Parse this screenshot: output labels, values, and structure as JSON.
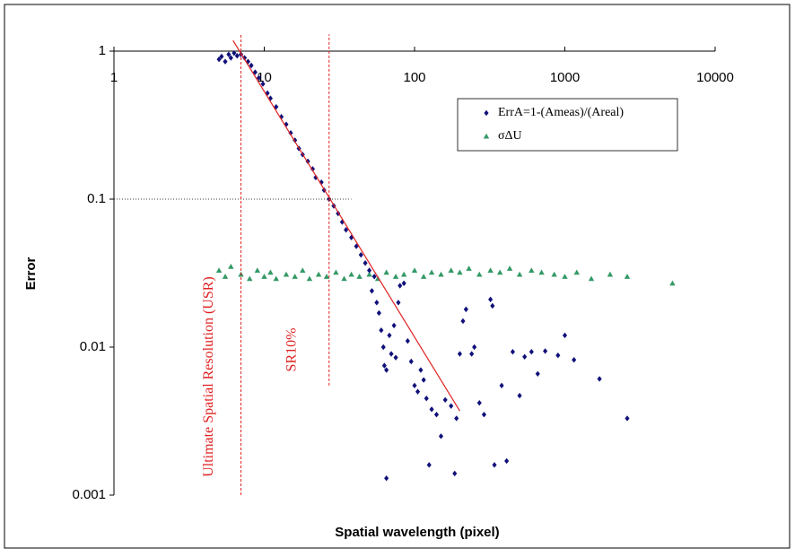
{
  "chart_data": {
    "type": "scatter",
    "x_label": "Spatial wavelength (pixel)",
    "y_label": "Error",
    "xlim": [
      1,
      10000
    ],
    "ylim": [
      0.001,
      1
    ],
    "xticks": [
      1,
      10,
      100,
      1000,
      10000
    ],
    "yticks": [
      0.001,
      0.01,
      0.1,
      1
    ],
    "xscale": "log",
    "yscale": "log",
    "x_axis_position": "top",
    "legend": "upper right",
    "series": [
      {
        "name": "ErrA=1-(Ameas)/(Areal)",
        "color": "#10107a",
        "marker": "diamond",
        "x": [
          5.0,
          5.2,
          5.5,
          5.8,
          6.0,
          6.3,
          6.6,
          7.0,
          7.4,
          7.8,
          8.2,
          8.7,
          9.2,
          9.8,
          10.5,
          11,
          12,
          13,
          14,
          15,
          16,
          17,
          18,
          19.5,
          21,
          22,
          24,
          25,
          27,
          29,
          31,
          33,
          35,
          38,
          41,
          44,
          47,
          50,
          54,
          52,
          56,
          58,
          60,
          62,
          63,
          65,
          68,
          70,
          73,
          75,
          78,
          80,
          85,
          65,
          90,
          95,
          100,
          105,
          110,
          115,
          120,
          125,
          130,
          140,
          150,
          160,
          175,
          185,
          190,
          200,
          210,
          220,
          240,
          250,
          270,
          290,
          320,
          330,
          340,
          380,
          410,
          450,
          500,
          540,
          600,
          660,
          740,
          900,
          1000,
          1150,
          1700,
          2600
        ],
        "values": [
          0.88,
          0.92,
          0.85,
          0.95,
          0.9,
          0.97,
          0.93,
          0.95,
          0.9,
          0.85,
          0.8,
          0.72,
          0.66,
          0.6,
          0.52,
          0.48,
          0.42,
          0.36,
          0.32,
          0.28,
          0.25,
          0.22,
          0.2,
          0.18,
          0.16,
          0.14,
          0.13,
          0.115,
          0.1,
          0.09,
          0.08,
          0.07,
          0.062,
          0.055,
          0.048,
          0.042,
          0.037,
          0.033,
          0.03,
          0.024,
          0.02,
          0.017,
          0.013,
          0.01,
          0.0075,
          0.007,
          0.012,
          0.009,
          0.014,
          0.0085,
          0.02,
          0.026,
          0.027,
          0.0013,
          0.011,
          0.008,
          0.0055,
          0.005,
          0.007,
          0.006,
          0.0045,
          0.0016,
          0.0038,
          0.0035,
          0.0025,
          0.0044,
          0.004,
          0.0014,
          0.0033,
          0.009,
          0.015,
          0.018,
          0.009,
          0.01,
          0.0042,
          0.0035,
          0.021,
          0.019,
          0.0016,
          0.0055,
          0.0017,
          0.0093,
          0.0047,
          0.0086,
          0.0093,
          0.0066,
          0.0094,
          0.0088,
          0.012,
          0.0082,
          0.0061,
          0.0033
        ]
      },
      {
        "name": "σΔU",
        "color": "#339966",
        "marker": "triangle",
        "x": [
          5,
          5.5,
          6,
          7,
          8,
          9,
          10,
          11,
          12,
          14,
          16,
          18,
          20,
          23,
          26,
          30,
          34,
          38,
          43,
          50,
          57,
          65,
          75,
          85,
          100,
          115,
          130,
          150,
          175,
          200,
          230,
          270,
          320,
          370,
          430,
          500,
          600,
          700,
          850,
          1000,
          1200,
          1500,
          2000,
          2600,
          5200
        ],
        "values": [
          0.033,
          0.03,
          0.035,
          0.031,
          0.029,
          0.033,
          0.03,
          0.032,
          0.029,
          0.031,
          0.03,
          0.033,
          0.029,
          0.031,
          0.03,
          0.032,
          0.029,
          0.031,
          0.03,
          0.031,
          0.029,
          0.032,
          0.03,
          0.031,
          0.033,
          0.03,
          0.032,
          0.031,
          0.033,
          0.032,
          0.034,
          0.031,
          0.033,
          0.032,
          0.034,
          0.031,
          0.033,
          0.032,
          0.031,
          0.03,
          0.032,
          0.029,
          0.031,
          0.03,
          0.027
        ]
      }
    ],
    "fit_line": {
      "color": "#e02020",
      "x": [
        6.2,
        200
      ],
      "y": [
        1.18,
        0.0037
      ]
    },
    "reference_lines": [
      {
        "x": 7,
        "y_from": 0.001,
        "y_to": 1.3,
        "label": "Ultimate Spatial Resolution (USR)",
        "color": "#e02020"
      },
      {
        "x": 27,
        "y_from": 0.0055,
        "y_to": 1.3,
        "label": "SR10%",
        "color": "#e02020"
      }
    ],
    "threshold_line": {
      "y": 0.1,
      "x_to": 38
    }
  }
}
